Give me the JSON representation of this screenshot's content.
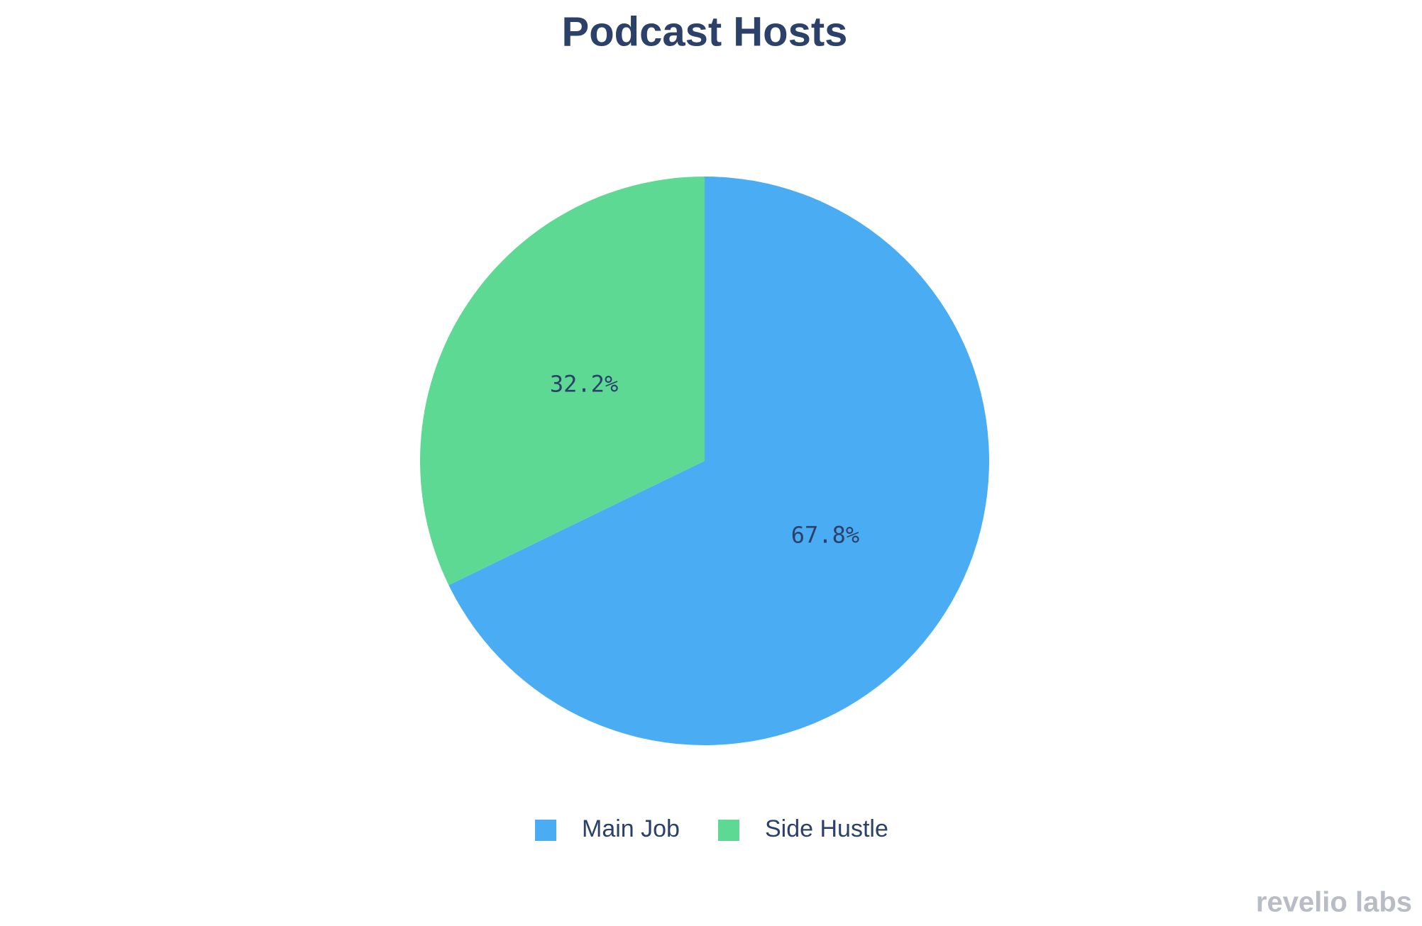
{
  "chart_data": {
    "type": "pie",
    "title": "Podcast Hosts",
    "categories": [
      "Main Job",
      "Side Hustle"
    ],
    "values": [
      67.8,
      32.2
    ],
    "value_labels": [
      "67.8%",
      "32.2%"
    ],
    "colors": [
      "#4aadf3",
      "#5dd993"
    ],
    "legend": "bottom",
    "watermark": "revelio labs"
  }
}
